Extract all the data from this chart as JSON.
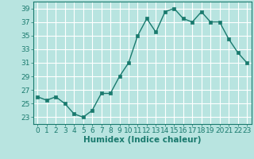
{
  "x": [
    0,
    1,
    2,
    3,
    4,
    5,
    6,
    7,
    8,
    9,
    10,
    11,
    12,
    13,
    14,
    15,
    16,
    17,
    18,
    19,
    20,
    21,
    22,
    23
  ],
  "y": [
    26,
    25.5,
    26,
    25,
    23.5,
    23,
    24,
    26.5,
    26.5,
    29,
    31,
    35,
    37.5,
    35.5,
    38.5,
    39,
    37.5,
    37,
    38.5,
    37,
    37,
    34.5,
    32.5,
    31
  ],
  "line_color": "#1a7a6e",
  "marker_color": "#1a7a6e",
  "bg_color": "#b8e4e0",
  "grid_color": "#ffffff",
  "xlabel": "Humidex (Indice chaleur)",
  "ylim": [
    22,
    40
  ],
  "xlim": [
    -0.5,
    23.5
  ],
  "yticks": [
    23,
    25,
    27,
    29,
    31,
    33,
    35,
    37,
    39
  ],
  "xticks": [
    0,
    1,
    2,
    3,
    4,
    5,
    6,
    7,
    8,
    9,
    10,
    11,
    12,
    13,
    14,
    15,
    16,
    17,
    18,
    19,
    20,
    21,
    22,
    23
  ],
  "tick_color": "#1a7a6e",
  "label_color": "#1a7a6e",
  "font_size": 6.5,
  "xlabel_fontsize": 7.5,
  "line_width": 1.0,
  "marker_size": 2.5
}
